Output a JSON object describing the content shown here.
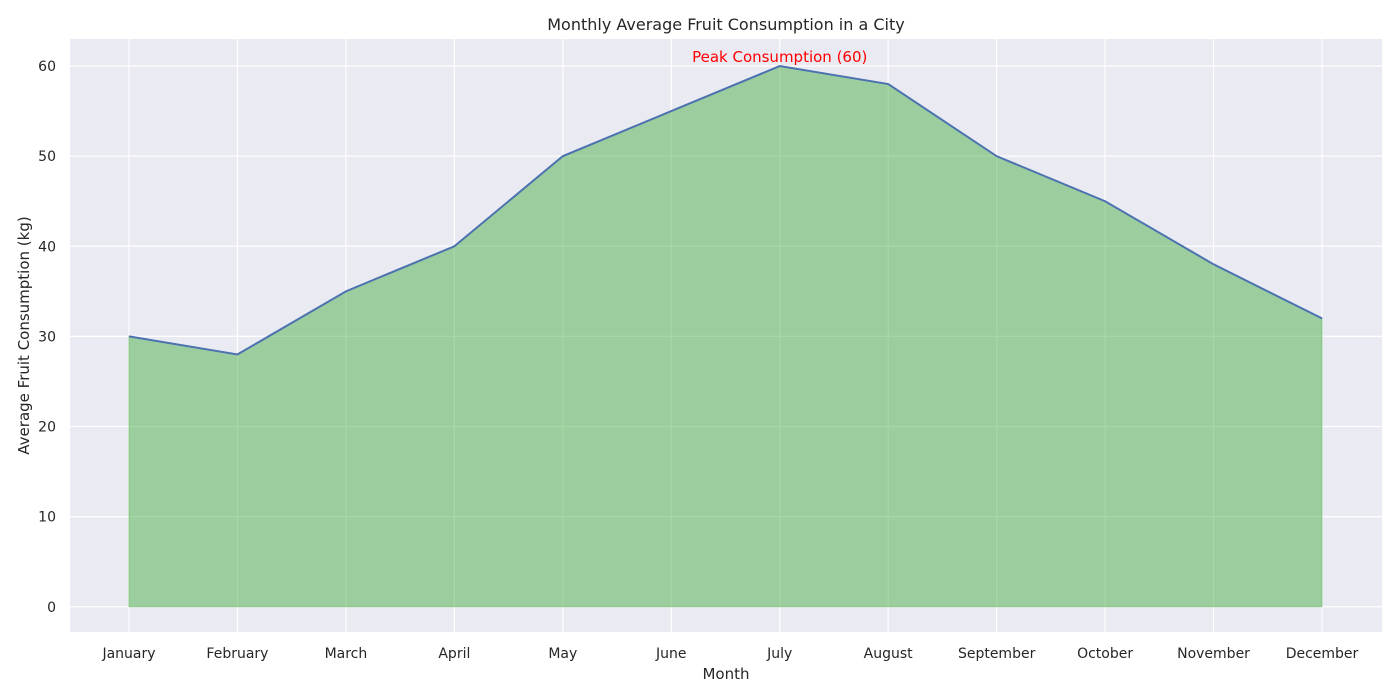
{
  "chart_data": {
    "type": "area",
    "title": "Monthly Average Fruit Consumption in a City",
    "xlabel": "Month",
    "ylabel": "Average Fruit Consumption (kg)",
    "categories": [
      "January",
      "February",
      "March",
      "April",
      "May",
      "June",
      "July",
      "August",
      "September",
      "October",
      "November",
      "December"
    ],
    "values": [
      30,
      28,
      35,
      40,
      50,
      55,
      60,
      58,
      50,
      45,
      38,
      32
    ],
    "yticks": [
      0,
      10,
      20,
      30,
      40,
      50,
      60
    ],
    "ylim": [
      -2.8,
      63
    ],
    "grid": true,
    "annotation": {
      "text": "Peak Consumption (60)",
      "category": "July",
      "value": 60,
      "color": "#ff0000"
    },
    "colors": {
      "background": "#eaeaf2",
      "grid": "#ffffff",
      "line": "#4c72b0",
      "fill": "#4daf4a",
      "text": "#262626"
    }
  }
}
